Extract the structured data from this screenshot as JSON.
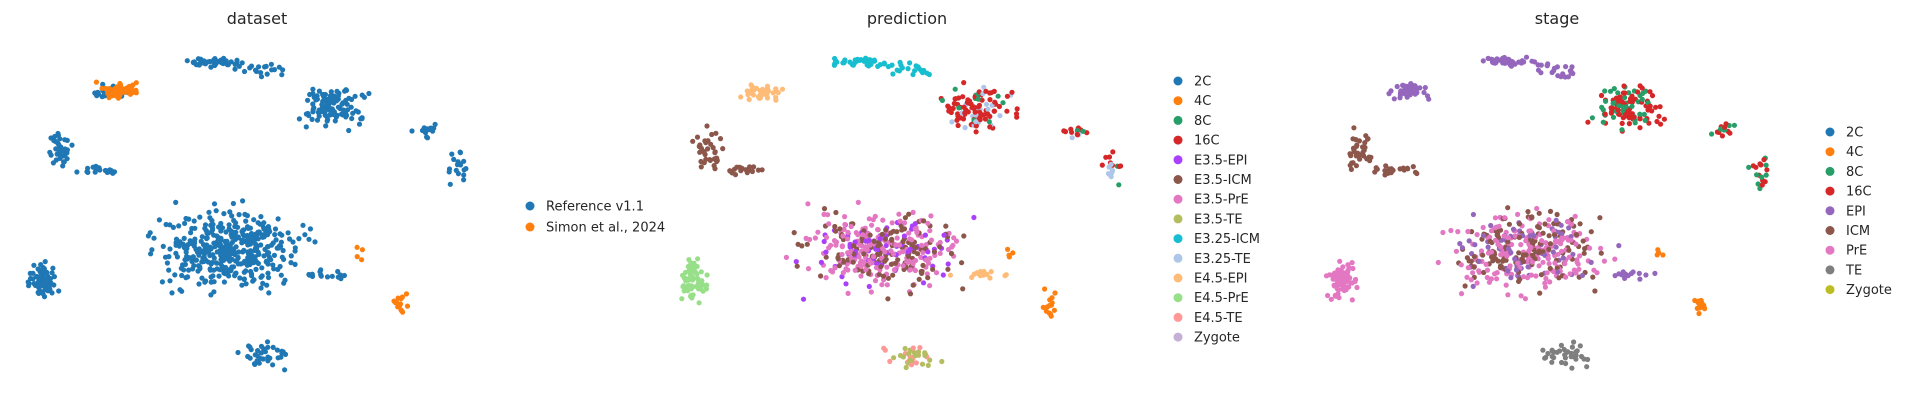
{
  "chart_data": [
    {
      "type": "scatter",
      "title": "dataset",
      "xlabel": "",
      "ylabel": "",
      "grid": false,
      "legend_placement": "right",
      "categories": [
        "Reference v1.1",
        "Simon et al., 2024"
      ],
      "colors": [
        "#1f77b4",
        "#ff7f0e"
      ],
      "point_regions": [
        "reference_all",
        "simon"
      ]
    },
    {
      "type": "scatter",
      "title": "prediction",
      "xlabel": "",
      "ylabel": "",
      "grid": false,
      "legend_placement": "right",
      "categories": [
        "2C",
        "4C",
        "8C",
        "16C",
        "E3.5-EPI",
        "E3.5-ICM",
        "E3.5-PrE",
        "E3.5-TE",
        "E3.25-ICM",
        "E3.25-TE",
        "E4.5-EPI",
        "E4.5-PrE",
        "E4.5-TE",
        "Zygote"
      ],
      "colors": [
        "#1f77b4",
        "#ff7f0e",
        "#279e68",
        "#d62728",
        "#aa40fc",
        "#8c564b",
        "#e377c2",
        "#b5bd61",
        "#17becf",
        "#aec7e8",
        "#ffbb78",
        "#98df8a",
        "#ff9896",
        "#c5b0d5"
      ],
      "point_regions": [
        "pred"
      ]
    },
    {
      "type": "scatter",
      "title": "stage",
      "xlabel": "",
      "ylabel": "",
      "grid": false,
      "legend_placement": "right",
      "categories": [
        "2C",
        "4C",
        "8C",
        "16C",
        "EPI",
        "ICM",
        "PrE",
        "TE",
        "Zygote"
      ],
      "colors": [
        "#1f77b4",
        "#ff7f0e",
        "#279e68",
        "#d62728",
        "#9467bd",
        "#8c564b",
        "#e377c2",
        "#7f7f7f",
        "#bcbd22"
      ],
      "point_regions": [
        "stage"
      ]
    }
  ]
}
